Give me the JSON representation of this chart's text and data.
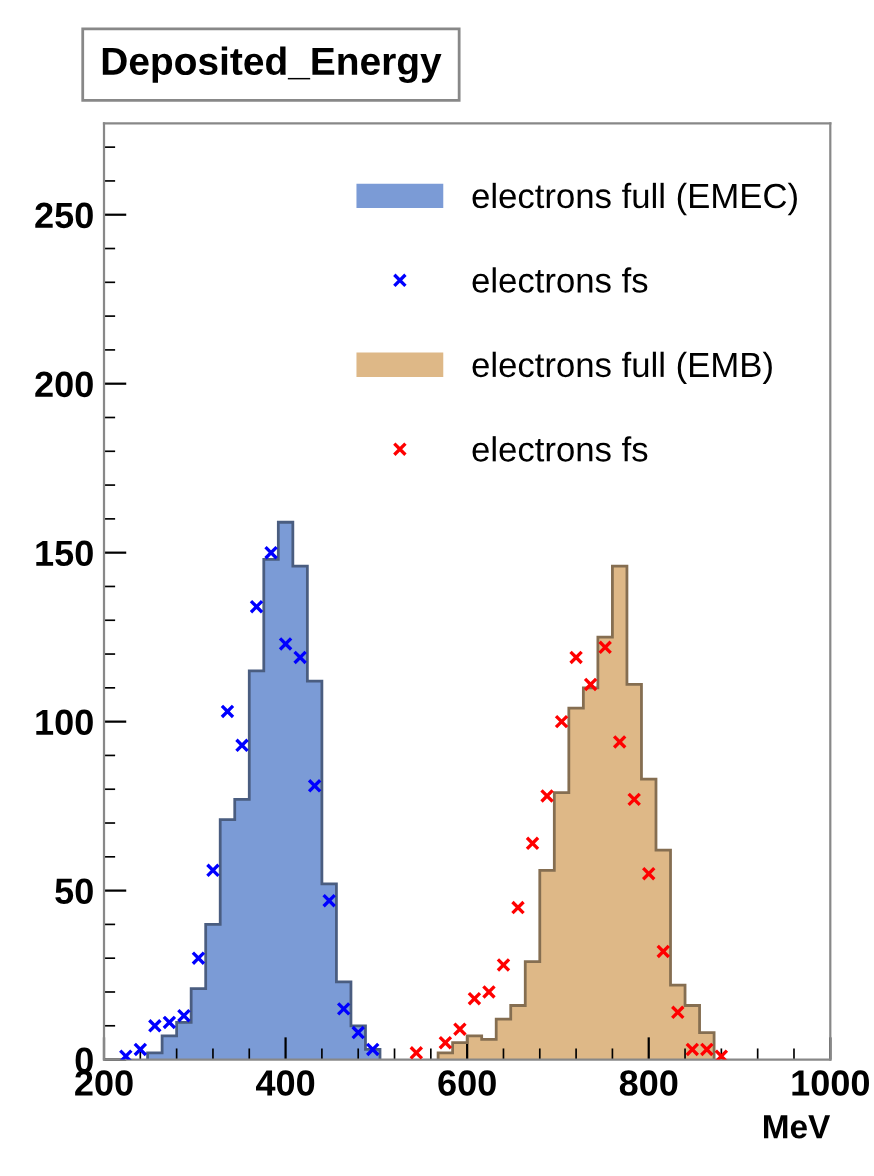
{
  "chart_data": {
    "type": "histogram",
    "title": "Deposited_Energy",
    "xlabel": "MeV",
    "xlim": [
      200,
      1000
    ],
    "xticks": [
      200,
      400,
      600,
      800,
      1000
    ],
    "ylim": [
      0,
      277
    ],
    "yticks": [
      0,
      50,
      100,
      150,
      200,
      250
    ],
    "grid": false,
    "legend": "top right",
    "series": [
      {
        "name": "electrons full (EMEC)",
        "color": "#7b9bd6",
        "bins": [
          248,
          264,
          280,
          296,
          312,
          328,
          344,
          360,
          376,
          392,
          408,
          424,
          440,
          456,
          472,
          488,
          504
        ],
        "values": [
          2,
          7,
          11,
          21,
          40,
          71,
          77,
          115,
          148,
          159,
          146,
          112,
          52,
          23,
          10,
          3
        ]
      },
      {
        "name": "electrons fs",
        "type": "scatter",
        "marker": "cross",
        "color": "#0000ff",
        "x": [
          224,
          240,
          256,
          272,
          288,
          304,
          320,
          336,
          352,
          368,
          384,
          400,
          416,
          432,
          448,
          464,
          480,
          496
        ],
        "values": [
          1,
          3,
          10,
          11,
          13,
          30,
          56,
          103,
          93,
          134,
          150,
          123,
          119,
          81,
          47,
          15,
          8,
          3
        ]
      },
      {
        "name": "electrons full (EMB)",
        "color": "#deb887",
        "bins": [
          568,
          584,
          600,
          616,
          632,
          648,
          664,
          680,
          696,
          712,
          728,
          744,
          760,
          776,
          792,
          808,
          824,
          840,
          856,
          872
        ],
        "values": [
          2,
          5,
          7,
          6,
          12,
          16,
          29,
          56,
          79,
          104,
          110,
          125,
          146,
          111,
          83,
          62,
          22,
          16,
          8
        ]
      },
      {
        "name": "electrons fs",
        "type": "scatter",
        "marker": "cross",
        "color": "#ff0000",
        "x": [
          544,
          576,
          592,
          608,
          624,
          640,
          656,
          672,
          688,
          704,
          720,
          736,
          752,
          768,
          784,
          800,
          816,
          832,
          848,
          864,
          880
        ],
        "values": [
          2,
          5,
          9,
          18,
          20,
          28,
          45,
          64,
          78,
          100,
          119,
          111,
          122,
          94,
          77,
          55,
          32,
          14,
          3,
          3,
          1
        ]
      }
    ]
  }
}
